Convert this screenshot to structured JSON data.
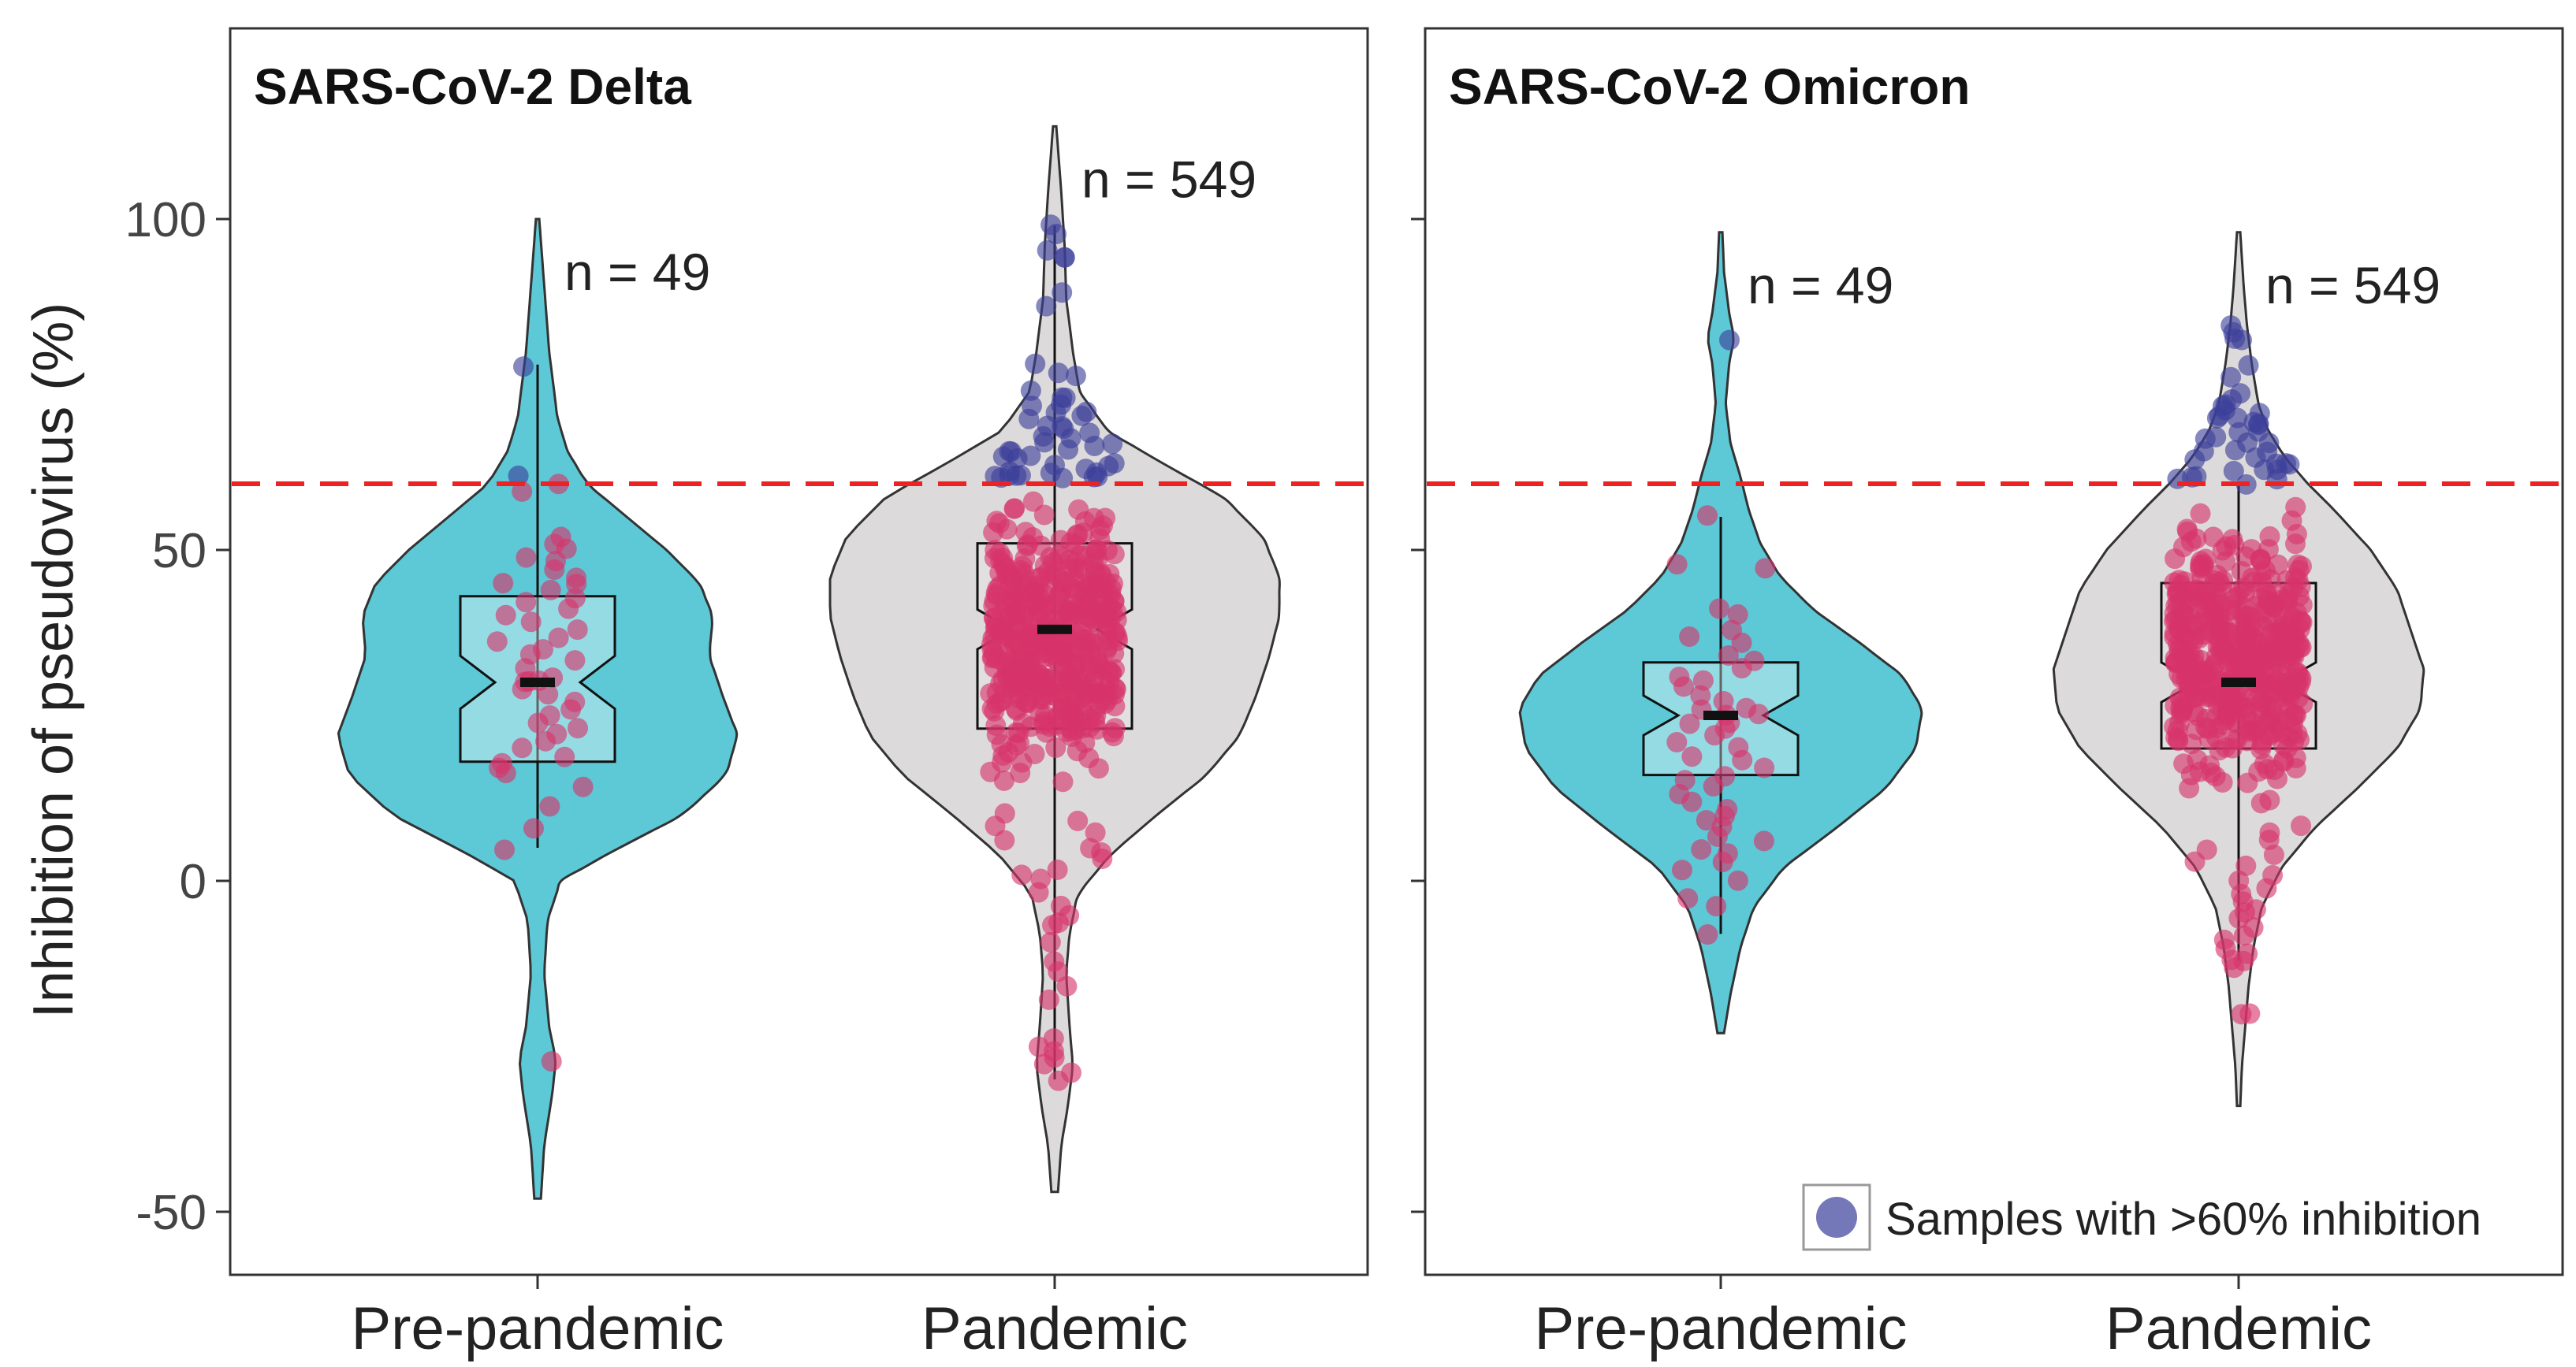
{
  "chart_data": {
    "type": "violin",
    "ylabel": "Inhibition of pseudovirus (%)",
    "ylim": [
      -55,
      130
    ],
    "yticks": [
      100,
      50,
      0,
      -50
    ],
    "ytick_labels": [
      "100",
      "50",
      "0",
      "-50"
    ],
    "threshold": 60,
    "threshold_color": "#ee2222",
    "legend": {
      "label": "Samples with >60% inhibition",
      "color": "#3b3f9a",
      "position": "bottom-right"
    },
    "colors": {
      "pre_fill": "#5dc8d6",
      "pan_fill": "#dcdada",
      "point_low": "#d6336a",
      "point_high": "#3b3f9a"
    },
    "panels": [
      {
        "title": "SARS-CoV-2 Delta",
        "groups": [
          {
            "label": "Pre-pandemic",
            "n_label": "n = 49",
            "fill": "#5dc8d6",
            "violin_range": [
              -48,
              100
            ],
            "violin_density": [
              [
                -48,
                2
              ],
              [
                -40,
                4
              ],
              [
                -32,
                9
              ],
              [
                -27,
                11
              ],
              [
                -22,
                7
              ],
              [
                -14,
                4
              ],
              [
                -6,
                6
              ],
              [
                0,
                14
              ],
              [
                4,
                42
              ],
              [
                10,
                88
              ],
              [
                16,
                114
              ],
              [
                22,
                121
              ],
              [
                28,
                112
              ],
              [
                34,
                104
              ],
              [
                40,
                106
              ],
              [
                45,
                98
              ],
              [
                50,
                78
              ],
              [
                55,
                54
              ],
              [
                60,
                30
              ],
              [
                65,
                18
              ],
              [
                70,
                12
              ],
              [
                80,
                7
              ],
              [
                90,
                4
              ],
              [
                100,
                1
              ]
            ],
            "box": {
              "q1": 18,
              "median": 30,
              "q3": 43,
              "notch_low": 26,
              "notch_high": 34,
              "whisker_low": 5,
              "whisker_high": 78
            },
            "points": [
              78,
              61,
              60,
              59,
              52,
              51,
              50,
              49,
              48,
              47,
              46,
              45,
              45,
              44,
              43,
              42,
              41,
              40,
              39,
              38,
              37,
              36,
              35,
              34,
              33,
              32,
              31,
              30,
              30,
              30,
              29,
              28,
              27,
              26,
              25,
              24,
              23,
              22,
              21,
              20,
              19,
              18,
              17,
              16,
              14,
              11,
              8,
              5,
              -27
            ]
          },
          {
            "label": "Pandemic",
            "n_label": "n = 549",
            "fill": "#dcdada",
            "violin_range": [
              -47,
              114
            ],
            "violin_density": [
              [
                -47,
                2
              ],
              [
                -40,
                4
              ],
              [
                -34,
                8
              ],
              [
                -28,
                11
              ],
              [
                -22,
                9
              ],
              [
                -14,
                7
              ],
              [
                -8,
                9
              ],
              [
                -2,
                14
              ],
              [
                4,
                34
              ],
              [
                10,
                62
              ],
              [
                16,
                92
              ],
              [
                22,
                112
              ],
              [
                28,
                122
              ],
              [
                34,
                130
              ],
              [
                40,
                136
              ],
              [
                46,
                136
              ],
              [
                52,
                126
              ],
              [
                58,
                102
              ],
              [
                63,
                66
              ],
              [
                68,
                32
              ],
              [
                74,
                15
              ],
              [
                80,
                11
              ],
              [
                88,
                7
              ],
              [
                96,
                6
              ],
              [
                104,
                4
              ],
              [
                114,
                1
              ]
            ],
            "box": {
              "q1": 23,
              "median": 38,
              "q3": 51,
              "notch_low": 35,
              "notch_high": 41,
              "whisker_low": -30,
              "whisker_high": 99
            },
            "high_points": [
              99,
              98,
              95,
              94,
              94,
              89,
              87,
              78,
              77,
              76,
              74,
              73,
              73,
              72,
              72,
              71,
              71,
              70,
              70,
              69,
              69,
              68,
              68,
              67,
              67,
              66,
              66,
              66,
              65,
              65,
              65,
              64,
              64,
              64,
              63,
              63,
              63,
              62,
              62,
              62,
              62,
              61,
              61,
              61,
              61,
              61,
              61,
              61,
              61
            ],
            "low_points_extra": [
              -30,
              -29,
              -28,
              -27,
              -26,
              -25,
              -24,
              -18,
              -16,
              -14,
              -12,
              -9,
              -7,
              -6,
              -5,
              -4,
              -2,
              0,
              1,
              2,
              3,
              4,
              5,
              6,
              7,
              8,
              9,
              10
            ]
          }
        ]
      },
      {
        "title": "SARS-CoV-2 Omicron",
        "groups": [
          {
            "label": "Pre-pandemic",
            "n_label": "n = 49",
            "fill": "#5dc8d6",
            "violin_range": [
              -23,
              98
            ],
            "violin_density": [
              [
                -23,
                2
              ],
              [
                -17,
                6
              ],
              [
                -10,
                12
              ],
              [
                -4,
                20
              ],
              [
                2,
                38
              ],
              [
                8,
                70
              ],
              [
                14,
                100
              ],
              [
                20,
                118
              ],
              [
                26,
                122
              ],
              [
                31,
                110
              ],
              [
                36,
                84
              ],
              [
                41,
                56
              ],
              [
                46,
                36
              ],
              [
                51,
                24
              ],
              [
                56,
                17
              ],
              [
                61,
                12
              ],
              [
                66,
                6
              ],
              [
                72,
                3
              ],
              [
                78,
                5
              ],
              [
                82,
                8
              ],
              [
                86,
                5
              ],
              [
                92,
                2
              ],
              [
                98,
                1
              ]
            ],
            "box": {
              "q1": 16,
              "median": 25,
              "q3": 33,
              "notch_low": 22,
              "notch_high": 28,
              "whisker_low": -8,
              "whisker_high": 55
            },
            "points": [
              82,
              55,
              48,
              47,
              41,
              40,
              38,
              37,
              36,
              34,
              33,
              32,
              31,
              30,
              29,
              28,
              27,
              26,
              26,
              25,
              25,
              24,
              24,
              23,
              22,
              21,
              20,
              19,
              18,
              17,
              16,
              15,
              14,
              13,
              12,
              11,
              10,
              9,
              8,
              7,
              6,
              5,
              4,
              3,
              2,
              0,
              -3,
              -4,
              -8
            ]
          },
          {
            "label": "Pandemic",
            "n_label": "n = 549",
            "fill": "#dcdada",
            "violin_range": [
              -34,
              98
            ],
            "violin_density": [
              [
                -34,
                1
              ],
              [
                -28,
                2
              ],
              [
                -22,
                4
              ],
              [
                -16,
                6
              ],
              [
                -10,
                9
              ],
              [
                -4,
                14
              ],
              [
                2,
                26
              ],
              [
                8,
                46
              ],
              [
                14,
                72
              ],
              [
                20,
                96
              ],
              [
                26,
                110
              ],
              [
                32,
                112
              ],
              [
                38,
                104
              ],
              [
                44,
                96
              ],
              [
                50,
                80
              ],
              [
                56,
                58
              ],
              [
                60,
                42
              ],
              [
                64,
                28
              ],
              [
                68,
                18
              ],
              [
                72,
                12
              ],
              [
                78,
                8
              ],
              [
                84,
                5
              ],
              [
                90,
                3
              ],
              [
                98,
                1
              ]
            ],
            "box": {
              "q1": 20,
              "median": 30,
              "q3": 45,
              "notch_low": 27,
              "notch_high": 33,
              "whisker_low": -12,
              "whisker_high": 60
            },
            "high_points": [
              84,
              83,
              82,
              82,
              78,
              76,
              74,
              73,
              72,
              72,
              71,
              71,
              70,
              70,
              70,
              69,
              69,
              69,
              68,
              68,
              67,
              67,
              66,
              66,
              65,
              65,
              65,
              64,
              64,
              63,
              63,
              63,
              62,
              62,
              62,
              61,
              61,
              61,
              61,
              60
            ],
            "low_points_extra": [
              -20,
              -20,
              -13,
              -12,
              -12,
              -11,
              -10,
              -9,
              -8,
              -7,
              -6,
              -5,
              -4,
              -3,
              -2,
              -1,
              0,
              1,
              2,
              3,
              4,
              5,
              6,
              7,
              8
            ]
          }
        ]
      }
    ]
  }
}
